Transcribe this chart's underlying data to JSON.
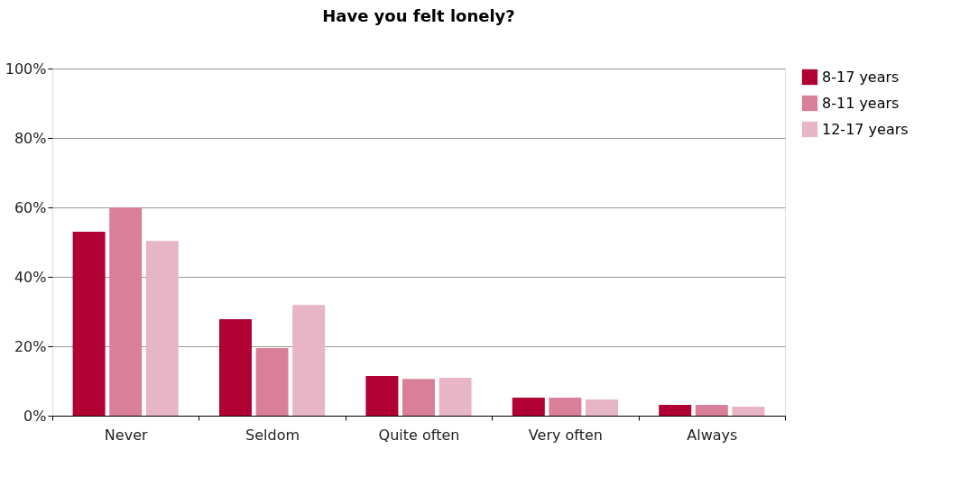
{
  "chart_data": {
    "type": "bar",
    "title": "Have you felt lonely?",
    "categories": [
      "Never",
      "Seldom",
      "Quite often",
      "Very often",
      "Always"
    ],
    "series": [
      {
        "name": "8-17 years",
        "color": "#b00034",
        "values": [
          53,
          27.8,
          11.4,
          5.2,
          3.1
        ]
      },
      {
        "name": "8-11 years",
        "color": "#d97f99",
        "values": [
          60,
          19.5,
          10.6,
          5.2,
          3.1
        ]
      },
      {
        "name": "12-17 years",
        "color": "#e8b5c6",
        "values": [
          50.3,
          31.9,
          10.9,
          4.7,
          2.6
        ]
      }
    ],
    "ylim": [
      0,
      100
    ],
    "yticks": [
      {
        "value": 0,
        "label": "0%"
      },
      {
        "value": 20,
        "label": "20%"
      },
      {
        "value": 40,
        "label": "40%"
      },
      {
        "value": 60,
        "label": "60%"
      },
      {
        "value": 80,
        "label": "80%"
      },
      {
        "value": 100,
        "label": "100%"
      }
    ],
    "grid": "y",
    "legend": "top right"
  }
}
